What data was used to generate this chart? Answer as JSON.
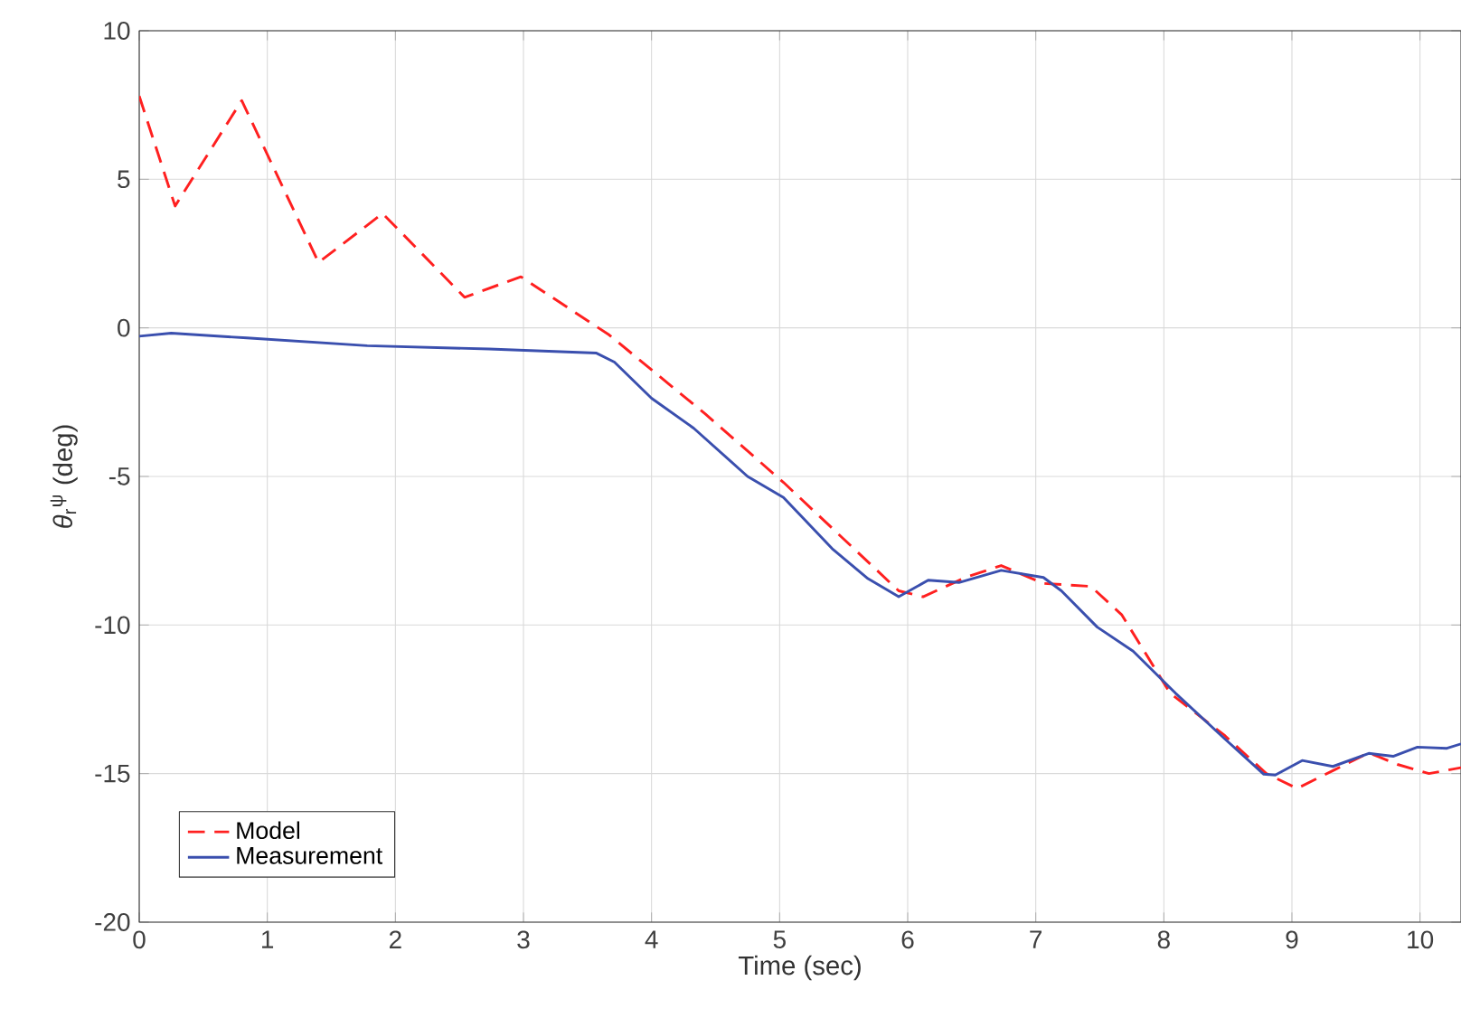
{
  "chart_data": {
    "type": "line",
    "xlabel": "Time (sec)",
    "ylabel": "*θ*$_{r}$$^{ψ}$ (deg)",
    "xlim": [
      0,
      10.32
    ],
    "ylim": [
      -20,
      10
    ],
    "xticks": [
      0,
      1,
      2,
      3,
      4,
      5,
      6,
      7,
      8,
      9,
      10
    ],
    "yticks": [
      -20,
      -15,
      -10,
      -5,
      0,
      5,
      10
    ],
    "grid": true,
    "legend": "bottom left",
    "marker": "none",
    "series": [
      {
        "name": "Model",
        "color": "#ff2020",
        "line_style": "dashed",
        "x": [
          0,
          0.28,
          0.8,
          1.4,
          1.9,
          2.54,
          2.98,
          3.67,
          4.42,
          5.03,
          5.93,
          6.12,
          6.45,
          6.73,
          7.06,
          7.43,
          7.67,
          8.05,
          8.47,
          8.8,
          9.04,
          9.32,
          9.6,
          9.83,
          10.07,
          10.32
        ],
        "values": [
          7.8,
          4.1,
          7.65,
          2.2,
          3.85,
          1.03,
          1.72,
          -0.24,
          -2.9,
          -5.2,
          -8.85,
          -9.05,
          -8.4,
          -8.0,
          -8.6,
          -8.7,
          -9.65,
          -12.3,
          -13.7,
          -15.0,
          -15.5,
          -14.9,
          -14.3,
          -14.7,
          -15.0,
          -14.8
        ]
      },
      {
        "name": "Measurement",
        "color": "#3a4fae",
        "line_style": "solid",
        "x": [
          0,
          0.25,
          0.84,
          1.78,
          2.73,
          3.57,
          3.71,
          4.0,
          4.33,
          4.75,
          5.03,
          5.41,
          5.69,
          5.93,
          6.16,
          6.4,
          6.73,
          7.06,
          7.2,
          7.48,
          7.76,
          8.09,
          8.47,
          8.78,
          8.87,
          9.08,
          9.32,
          9.6,
          9.79,
          9.98,
          10.21,
          10.32
        ],
        "values": [
          -0.28,
          -0.18,
          -0.34,
          -0.6,
          -0.71,
          -0.85,
          -1.15,
          -2.37,
          -3.38,
          -5.0,
          -5.71,
          -7.43,
          -8.44,
          -9.05,
          -8.49,
          -8.57,
          -8.16,
          -8.4,
          -8.85,
          -10.07,
          -10.88,
          -12.29,
          -13.81,
          -15.02,
          -15.05,
          -14.56,
          -14.76,
          -14.32,
          -14.42,
          -14.11,
          -14.15,
          -14.0
        ]
      }
    ]
  }
}
